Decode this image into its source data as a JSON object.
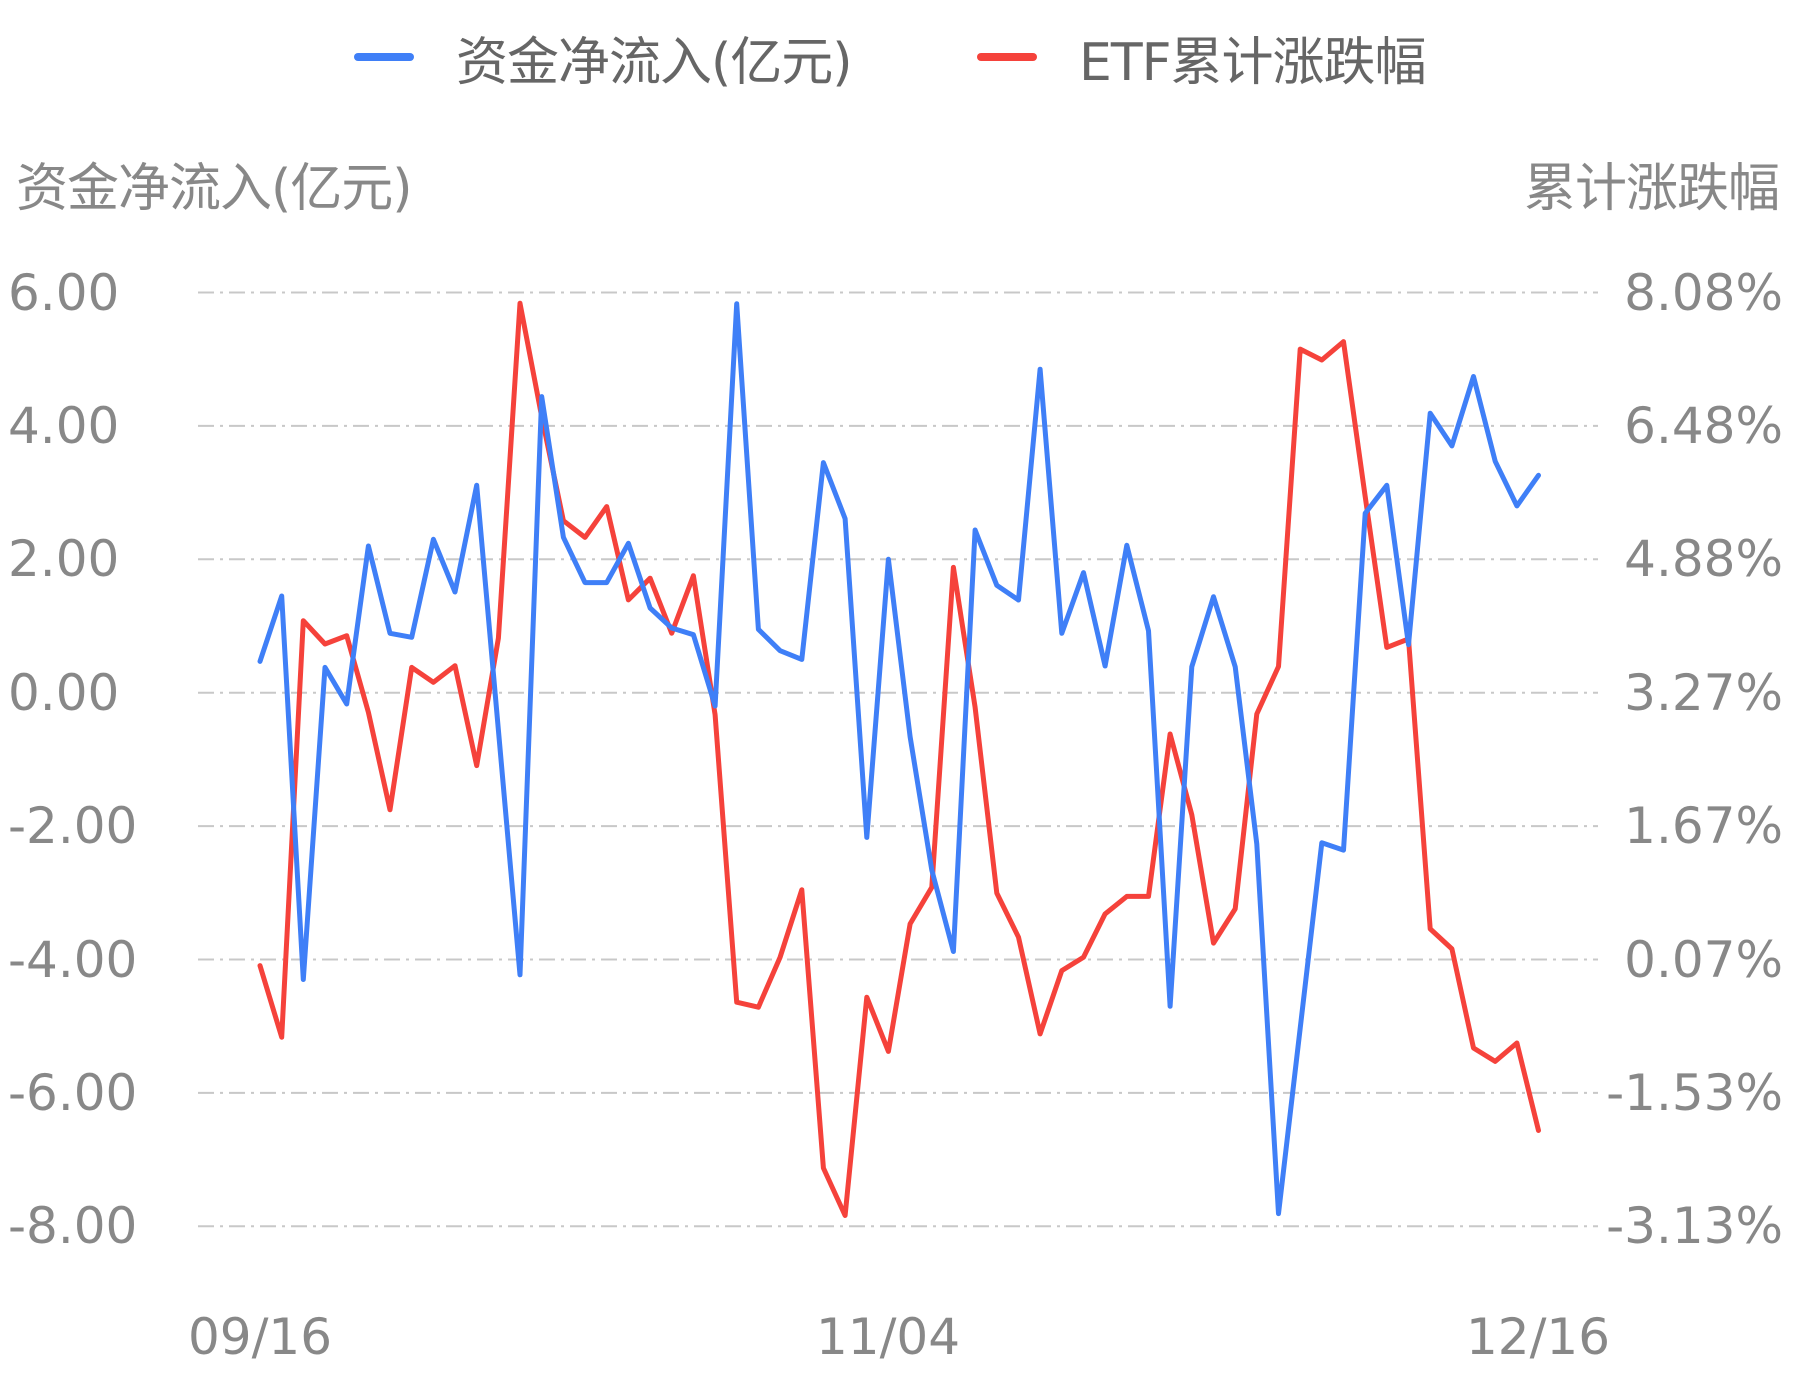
{
  "legend": {
    "items": [
      {
        "label": "资金净流入(亿元)",
        "color": "#3f7ff7"
      },
      {
        "label": "ETF累计涨跌幅",
        "color": "#f5423b"
      }
    ]
  },
  "axes": {
    "left_title": "资金净流入(亿元)",
    "right_title": "累计涨跌幅",
    "left_ticks": [
      "6.00",
      "4.00",
      "2.00",
      "0.00",
      "-2.00",
      "-4.00",
      "-6.00",
      "-8.00"
    ],
    "right_ticks": [
      "8.08%",
      "6.48%",
      "4.88%",
      "3.27%",
      "1.67%",
      "0.07%",
      "-1.53%",
      "-3.13%"
    ],
    "x_ticks": [
      {
        "label": "09/16",
        "index": 0
      },
      {
        "label": "11/04",
        "index": 29
      },
      {
        "label": "12/16",
        "index": 59
      }
    ]
  },
  "colors": {
    "grid": "#c8c8c8",
    "tick_text": "#888888",
    "legend_text": "#666666",
    "net_inflow": "#3f7ff7",
    "etf_return": "#f5423b"
  },
  "chart_data": {
    "type": "line",
    "title": "",
    "xlabel": "",
    "ylabel": "资金净流入(亿元)",
    "ylabel_right": "累计涨跌幅",
    "x_tick_labels": [
      "09/16",
      "11/04",
      "12/16"
    ],
    "x_tick_indices": [
      0,
      29,
      59
    ],
    "ylim": [
      -8,
      6
    ],
    "ylim_right": [
      -3.13,
      8.08
    ],
    "grid": true,
    "legend_position": "top",
    "series": [
      {
        "name": "资金净流入(亿元)",
        "axis": "left",
        "unit": "亿元",
        "values": [
          0.47,
          1.45,
          -4.3,
          0.38,
          -0.17,
          2.2,
          0.89,
          0.83,
          2.3,
          1.51,
          3.11,
          -0.56,
          -4.23,
          4.44,
          2.33,
          1.65,
          1.65,
          2.24,
          1.27,
          0.97,
          0.87,
          -0.2,
          5.83,
          0.95,
          0.63,
          0.5,
          3.45,
          2.61,
          -2.17,
          2.0,
          -0.66,
          -2.66,
          -3.88,
          2.44,
          1.61,
          1.39,
          4.85,
          0.89,
          1.8,
          0.4,
          2.21,
          0.93,
          -4.7,
          0.39,
          1.44,
          0.39,
          -2.27,
          -7.81,
          -5.03,
          -2.25,
          -2.36,
          2.69,
          3.11,
          0.72,
          4.19,
          3.7,
          4.74,
          3.47,
          2.8,
          3.26
        ]
      },
      {
        "name": "ETF累计涨跌幅",
        "axis": "right",
        "unit": "%",
        "values": [
          0.0,
          -0.86,
          4.14,
          3.86,
          3.96,
          3.04,
          1.87,
          3.58,
          3.4,
          3.6,
          2.4,
          3.93,
          7.95,
          6.59,
          5.34,
          5.14,
          5.51,
          4.39,
          4.65,
          3.99,
          4.68,
          3.01,
          -0.44,
          -0.5,
          0.1,
          0.91,
          -2.43,
          -3.0,
          -0.38,
          -1.03,
          0.5,
          0.94,
          4.78,
          3.1,
          0.87,
          0.34,
          -0.82,
          -0.06,
          0.1,
          0.62,
          0.83,
          0.83,
          2.78,
          1.81,
          0.27,
          0.68,
          3.02,
          3.59,
          7.4,
          7.27,
          7.49,
          5.63,
          3.82,
          3.92,
          0.44,
          0.2,
          -0.99,
          -1.15,
          -0.93,
          -1.98
        ]
      }
    ]
  }
}
